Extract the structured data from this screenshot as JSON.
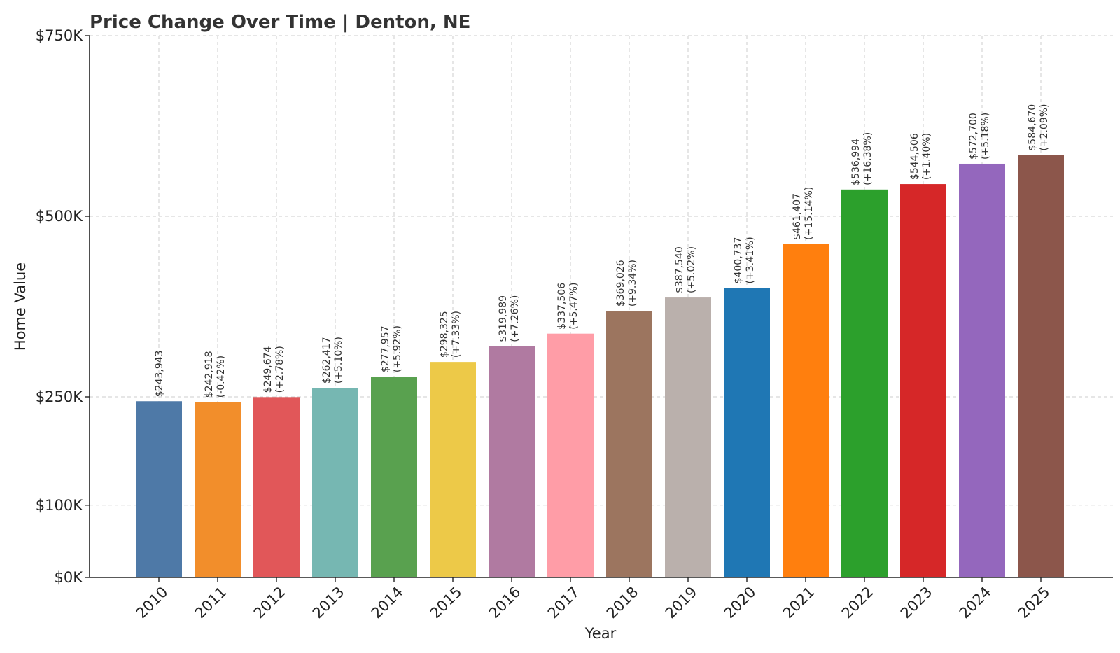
{
  "chart_data": {
    "type": "bar",
    "title": "Price Change Over Time | Denton, NE",
    "xlabel": "Year",
    "ylabel": "Home Value",
    "ylim": [
      0,
      750000
    ],
    "ytick_values": [
      0,
      100000,
      250000,
      500000,
      750000
    ],
    "ytick_labels": [
      "$0K",
      "$100K",
      "$250K",
      "$500K",
      "$750K"
    ],
    "grid": true,
    "categories": [
      "2010",
      "2011",
      "2012",
      "2013",
      "2014",
      "2015",
      "2016",
      "2017",
      "2018",
      "2019",
      "2020",
      "2021",
      "2022",
      "2023",
      "2024",
      "2025"
    ],
    "values": [
      243943,
      242918,
      249674,
      262417,
      277957,
      298325,
      319989,
      337506,
      369026,
      387540,
      400737,
      461407,
      536994,
      544506,
      572700,
      584670
    ],
    "value_labels": [
      "$243,943",
      "$242,918",
      "$249,674",
      "$262,417",
      "$277,957",
      "$298,325",
      "$319,989",
      "$337,506",
      "$369,026",
      "$387,540",
      "$400,737",
      "$461,407",
      "$536,994",
      "$544,506",
      "$572,700",
      "$584,670"
    ],
    "change_labels": [
      "",
      "(-0.42%)",
      "(+2.78%)",
      "(+5.10%)",
      "(+5.92%)",
      "(+7.33%)",
      "(+7.26%)",
      "(+5.47%)",
      "(+9.34%)",
      "(+5.02%)",
      "(+3.41%)",
      "(+15.14%)",
      "(+16.38%)",
      "(+1.40%)",
      "(+5.18%)",
      "(+2.09%)"
    ],
    "colors": [
      "#4e79a7",
      "#f28e2b",
      "#e15759",
      "#76b7b2",
      "#59a14f",
      "#edc948",
      "#b07aa1",
      "#ff9da7",
      "#9c755f",
      "#bab0ac",
      "#1f77b4",
      "#ff7f0e",
      "#2ca02c",
      "#d62728",
      "#9467bd",
      "#8c564b"
    ]
  }
}
